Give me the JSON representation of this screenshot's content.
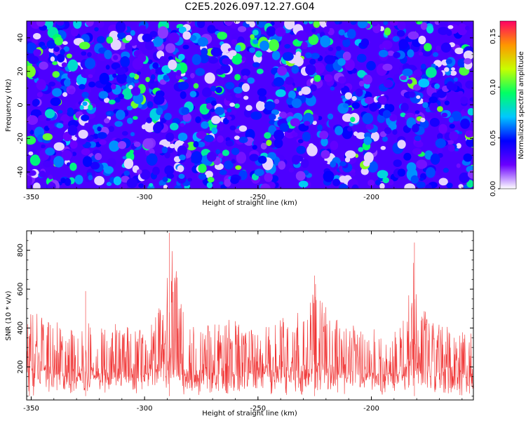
{
  "figure": {
    "title": "C2E5.2026.097.12.27.G04"
  },
  "chart_data": [
    {
      "type": "heatmap",
      "title": "C2E5.2026.097.12.27.G04",
      "xlabel": "Height of straight line (km)",
      "ylabel": "Frequency (Hz)",
      "xlim": [
        -352,
        -155
      ],
      "ylim": [
        -50,
        50
      ],
      "x_ticks": [
        -350,
        -300,
        -250,
        -200
      ],
      "x_tick_labels": [
        "-350",
        "-300",
        "-250",
        "-200"
      ],
      "y_ticks": [
        -40,
        -20,
        0,
        20,
        40
      ],
      "y_tick_labels": [
        "-40",
        "-20",
        "0",
        "20",
        "40"
      ],
      "colorbar": {
        "label": "Normalized spectral amplitude",
        "range": [
          0,
          0.165
        ],
        "ticks": [
          0,
          0.05,
          0.1,
          0.15
        ],
        "tick_labels": [
          "0.00",
          "0.05",
          "0.10",
          "0.15"
        ],
        "colormap": [
          "#ffffff",
          "#6a00ff",
          "#0000ff",
          "#00c8ff",
          "#00ff64",
          "#c8ff00",
          "#ff9600",
          "#ff0064"
        ]
      },
      "background_level": 0.03,
      "speckle_count": 1400,
      "grid": false
    },
    {
      "type": "line",
      "title": "",
      "xlabel": "Height of straight line (km)",
      "ylabel": "SNR (10 * v/v)",
      "xlim": [
        -352,
        -155
      ],
      "ylim": [
        30,
        900
      ],
      "x_ticks": [
        -350,
        -300,
        -250,
        -200
      ],
      "x_tick_labels": [
        "-350",
        "-300",
        "-250",
        "-200"
      ],
      "y_ticks": [
        200,
        400,
        600,
        800
      ],
      "y_tick_labels": [
        "200",
        "400",
        "600",
        "800"
      ],
      "color": "#f03232",
      "grid": false,
      "envelope": {
        "x": [
          -352,
          -345,
          -340,
          -330,
          -320,
          -310,
          -300,
          -295,
          -291,
          -289,
          -286,
          -282,
          -275,
          -265,
          -255,
          -245,
          -235,
          -228,
          -225,
          -222,
          -218,
          -210,
          -200,
          -190,
          -185,
          -181,
          -178,
          -175,
          -170,
          -162,
          -155
        ],
        "upper": [
          500,
          460,
          430,
          440,
          420,
          430,
          420,
          470,
          560,
          880,
          700,
          460,
          440,
          450,
          430,
          440,
          460,
          520,
          660,
          560,
          460,
          420,
          400,
          430,
          520,
          760,
          560,
          450,
          420,
          410,
          400
        ],
        "lower": [
          40,
          45,
          50,
          50,
          50,
          50,
          50,
          50,
          55,
          60,
          55,
          50,
          50,
          50,
          50,
          50,
          50,
          50,
          55,
          50,
          50,
          50,
          45,
          45,
          50,
          55,
          50,
          50,
          45,
          45,
          40
        ],
        "median": [
          190,
          180,
          175,
          175,
          175,
          170,
          170,
          185,
          230,
          300,
          250,
          180,
          170,
          170,
          170,
          170,
          175,
          190,
          230,
          200,
          175,
          165,
          160,
          170,
          190,
          250,
          210,
          180,
          175,
          170,
          165
        ]
      },
      "peaks": [
        {
          "x": -289,
          "y": 890
        },
        {
          "x": -225,
          "y": 670
        },
        {
          "x": -181,
          "y": 840
        },
        {
          "x": -326,
          "y": 590
        }
      ],
      "samples": 1300
    }
  ]
}
